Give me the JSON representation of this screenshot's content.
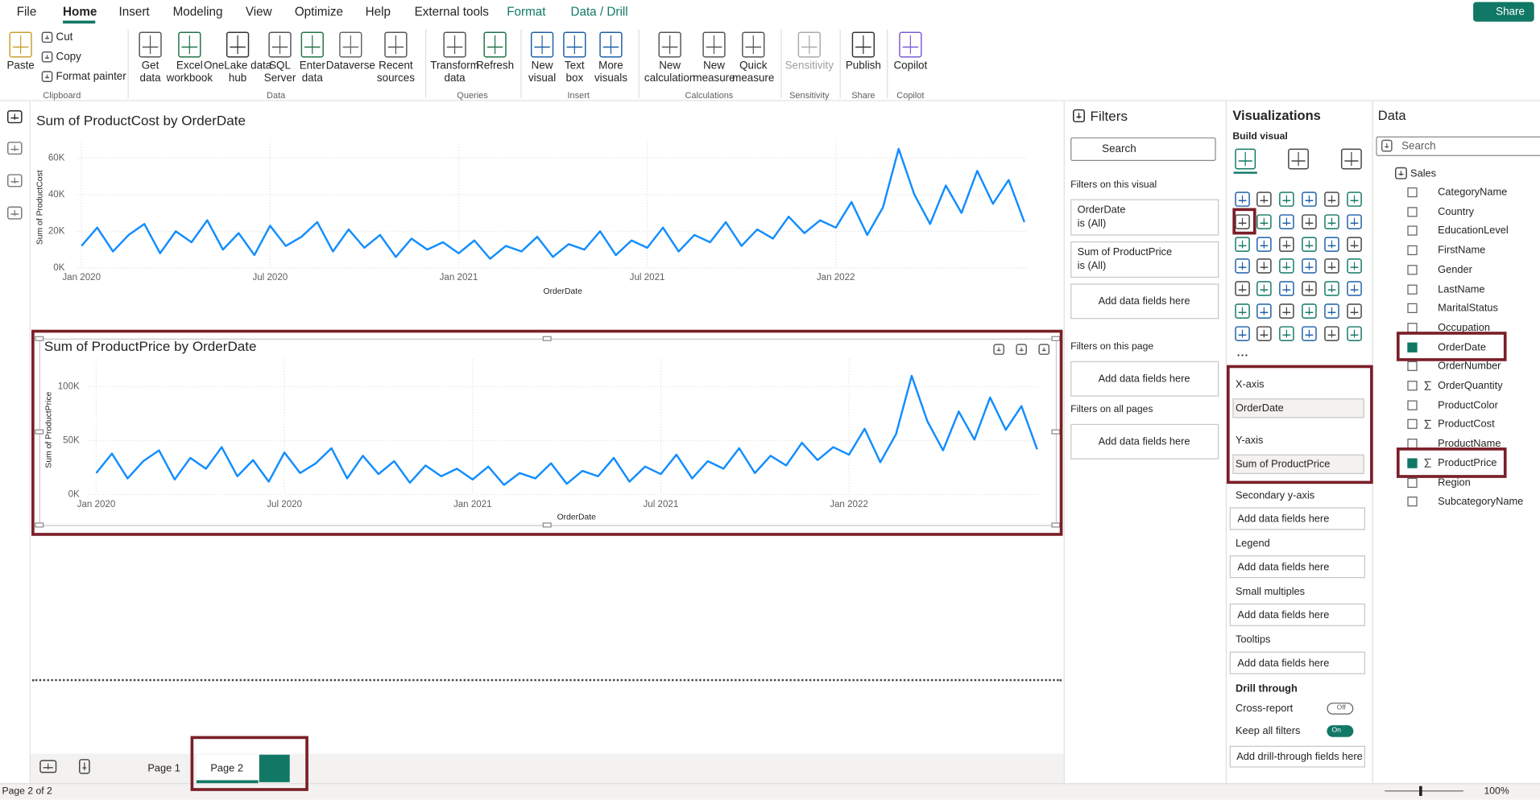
{
  "ribbon": {
    "tabs": [
      "File",
      "Home",
      "Insert",
      "Modeling",
      "View",
      "Optimize",
      "Help",
      "External tools",
      "Format",
      "Data / Drill"
    ],
    "share": "Share",
    "groups": [
      {
        "name": "Clipboard",
        "items": [
          "Paste",
          "Cut",
          "Copy",
          "Format painter"
        ]
      },
      {
        "name": "Data",
        "items": [
          "Get data",
          "Excel workbook",
          "OneLake data hub",
          "SQL Server",
          "Enter data",
          "Dataverse",
          "Recent sources"
        ]
      },
      {
        "name": "Queries",
        "items": [
          "Transform data",
          "Refresh"
        ]
      },
      {
        "name": "Insert",
        "items": [
          "New visual",
          "Text box",
          "More visuals"
        ]
      },
      {
        "name": "Calculations",
        "items": [
          "New calculation",
          "New measure",
          "Quick measure"
        ]
      },
      {
        "name": "Sensitivity",
        "items": [
          "Sensitivity"
        ]
      },
      {
        "name": "Share",
        "items": [
          "Publish"
        ]
      },
      {
        "name": "Copilot",
        "items": [
          "Copilot"
        ]
      }
    ]
  },
  "chart_data": [
    {
      "type": "line",
      "title": "Sum of ProductCost by OrderDate",
      "x_label": "OrderDate",
      "y_label": "Sum of ProductCost",
      "color": "#118dff",
      "categories": [
        "Jan 2020",
        null,
        null,
        null,
        null,
        null,
        null,
        null,
        null,
        null,
        null,
        null,
        "Jul 2020",
        null,
        null,
        null,
        null,
        null,
        null,
        null,
        null,
        null,
        null,
        null,
        "Jan 2021",
        null,
        null,
        null,
        null,
        null,
        null,
        null,
        null,
        null,
        null,
        null,
        "Jul 2021",
        null,
        null,
        null,
        null,
        null,
        null,
        null,
        null,
        null,
        null,
        null,
        "Jan 2022",
        null,
        null,
        null,
        null,
        null,
        null,
        null,
        null,
        null,
        null,
        null,
        null
      ],
      "values": [
        12000,
        22000,
        9000,
        18000,
        24000,
        8000,
        20000,
        14000,
        26000,
        10000,
        19000,
        7000,
        23000,
        12000,
        17000,
        25000,
        9000,
        21000,
        11000,
        18000,
        6000,
        16000,
        10000,
        14000,
        8000,
        15000,
        5000,
        12000,
        9000,
        17000,
        6000,
        13000,
        10000,
        20000,
        7000,
        15000,
        11000,
        22000,
        9000,
        18000,
        14000,
        25000,
        12000,
        21000,
        16000,
        28000,
        19000,
        26000,
        22000,
        36000,
        18000,
        33000,
        65000,
        40000,
        24000,
        45000,
        30000,
        53000,
        35000,
        48000,
        25000
      ],
      "ylim": [
        0,
        66000
      ],
      "yticks": [
        {
          "value": 0,
          "label": "0K"
        },
        {
          "value": 20000,
          "label": "20K"
        },
        {
          "value": 40000,
          "label": "40K"
        },
        {
          "value": 60000,
          "label": "60K"
        }
      ],
      "grid": true
    },
    {
      "type": "line",
      "title": "Sum of ProductPrice by OrderDate",
      "x_label": "OrderDate",
      "y_label": "Sum of ProductPrice",
      "color": "#118dff",
      "categories": [
        "Jan 2020",
        null,
        null,
        null,
        null,
        null,
        null,
        null,
        null,
        null,
        null,
        null,
        "Jul 2020",
        null,
        null,
        null,
        null,
        null,
        null,
        null,
        null,
        null,
        null,
        null,
        "Jan 2021",
        null,
        null,
        null,
        null,
        null,
        null,
        null,
        null,
        null,
        null,
        null,
        "Jul 2021",
        null,
        null,
        null,
        null,
        null,
        null,
        null,
        null,
        null,
        null,
        null,
        "Jan 2022",
        null,
        null,
        null,
        null,
        null,
        null,
        null,
        null,
        null,
        null,
        null,
        null
      ],
      "values": [
        20000,
        38000,
        15000,
        31000,
        41000,
        14000,
        34000,
        24000,
        44000,
        17000,
        32000,
        12000,
        39000,
        20000,
        29000,
        43000,
        15000,
        36000,
        19000,
        31000,
        11000,
        27000,
        17000,
        24000,
        14000,
        26000,
        9000,
        20000,
        15000,
        29000,
        10000,
        22000,
        17000,
        34000,
        12000,
        26000,
        19000,
        37000,
        15000,
        31000,
        24000,
        43000,
        20000,
        36000,
        27000,
        48000,
        32000,
        44000,
        37000,
        61000,
        30000,
        56000,
        110000,
        68000,
        41000,
        77000,
        51000,
        90000,
        60000,
        82000,
        42000
      ],
      "ylim": [
        0,
        120000
      ],
      "yticks": [
        {
          "value": 0,
          "label": "0K"
        },
        {
          "value": 50000,
          "label": "50K"
        },
        {
          "value": 100000,
          "label": "100K"
        }
      ],
      "grid": true
    }
  ],
  "filters": {
    "title": "Filters",
    "search": "Search",
    "sections": [
      {
        "title": "Filters on this visual",
        "cards": [
          {
            "field": "OrderDate",
            "state": "is (All)"
          },
          {
            "field": "Sum of ProductPrice",
            "state": "is (All)"
          }
        ],
        "add": "Add data fields here"
      },
      {
        "title": "Filters on this page",
        "add": "Add data fields here"
      },
      {
        "title": "Filters on all pages",
        "add": "Add data fields here"
      }
    ]
  },
  "visualizations": {
    "title": "Visualizations",
    "build_visual": "Build visual",
    "wells": [
      {
        "label": "X-axis",
        "field": "OrderDate"
      },
      {
        "label": "Y-axis",
        "field": "Sum of ProductPrice"
      },
      {
        "label": "Secondary y-axis",
        "placeholder": "Add data fields here"
      },
      {
        "label": "Legend",
        "placeholder": "Add data fields here"
      },
      {
        "label": "Small multiples",
        "placeholder": "Add data fields here"
      },
      {
        "label": "Tooltips",
        "placeholder": "Add data fields here"
      }
    ],
    "drill_through": {
      "title": "Drill through",
      "options": [
        {
          "label": "Cross-report",
          "toggle": "Off",
          "on": false
        },
        {
          "label": "Keep all filters",
          "toggle": "On",
          "on": true
        }
      ],
      "placeholder": "Add drill-through fields here"
    }
  },
  "data_pane": {
    "title": "Data",
    "search": "Search",
    "table": "Sales",
    "fields": [
      {
        "name": "CategoryName",
        "checked": false,
        "sum": false
      },
      {
        "name": "Country",
        "checked": false,
        "sum": false
      },
      {
        "name": "EducationLevel",
        "checked": false,
        "sum": false
      },
      {
        "name": "FirstName",
        "checked": false,
        "sum": false
      },
      {
        "name": "Gender",
        "checked": false,
        "sum": false
      },
      {
        "name": "LastName",
        "checked": false,
        "sum": false
      },
      {
        "name": "MaritalStatus",
        "checked": false,
        "sum": false
      },
      {
        "name": "Occupation",
        "checked": false,
        "sum": false
      },
      {
        "name": "OrderDate",
        "checked": true,
        "sum": false
      },
      {
        "name": "OrderNumber",
        "checked": false,
        "sum": false
      },
      {
        "name": "OrderQuantity",
        "checked": false,
        "sum": true
      },
      {
        "name": "ProductColor",
        "checked": false,
        "sum": false
      },
      {
        "name": "ProductCost",
        "checked": false,
        "sum": true
      },
      {
        "name": "ProductName",
        "checked": false,
        "sum": false
      },
      {
        "name": "ProductPrice",
        "checked": true,
        "sum": true
      },
      {
        "name": "Region",
        "checked": false,
        "sum": false
      },
      {
        "name": "SubcategoryName",
        "checked": false,
        "sum": false
      }
    ]
  },
  "pages": {
    "tabs": [
      "Page 1",
      "Page 2"
    ]
  },
  "status": {
    "page": "Page 2 of 2",
    "zoom": "100%"
  }
}
